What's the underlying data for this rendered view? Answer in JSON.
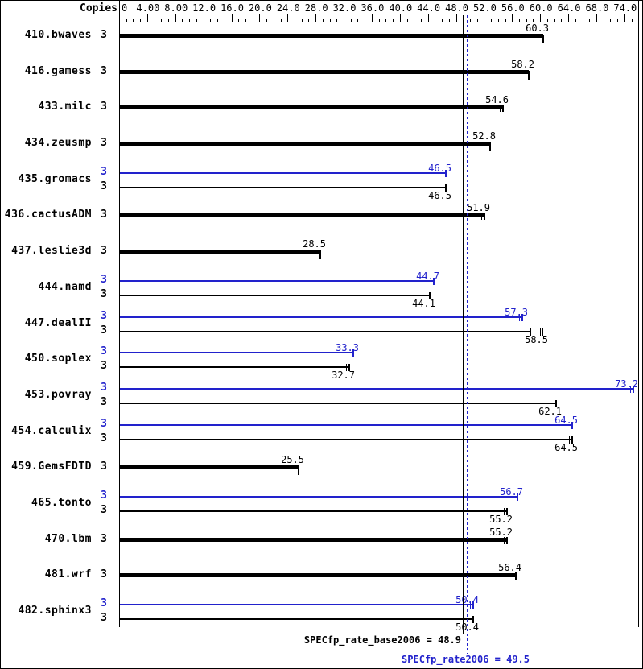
{
  "header": {
    "copies_label": "Copies",
    "copies_column_header_note": "Copies"
  },
  "colors": {
    "peak_blue": "#2222cc",
    "base_black": "#000000",
    "background": "#ffffff"
  },
  "summary": {
    "base_text": "SPECfp_rate_base2006 = 48.9",
    "peak_text": "SPECfp_rate2006 = 49.5"
  },
  "chart_data": {
    "type": "bar",
    "orientation": "horizontal",
    "xlim": [
      0,
      74
    ],
    "grid": false,
    "x_tick_values": [
      0,
      4,
      8,
      12,
      16,
      20,
      24,
      28,
      32,
      36,
      40,
      44,
      48,
      52,
      56,
      60,
      64,
      68,
      74
    ],
    "x_tick_labels": [
      "0",
      "4.00",
      "8.00",
      "12.0",
      "16.0",
      "20.0",
      "24.0",
      "28.0",
      "32.0",
      "36.0",
      "40.0",
      "44.0",
      "48.0",
      "52.0",
      "56.0",
      "60.0",
      "64.0",
      "68.0",
      "74.0"
    ],
    "minor_tick_step": 1,
    "major_tick_step": 4,
    "reference_lines": [
      {
        "name": "SPECfp_rate_base2006",
        "value": 48.9,
        "color": "base",
        "style": "solid"
      },
      {
        "name": "SPECfp_rate2006",
        "value": 49.5,
        "color": "peak",
        "style": "dotted"
      }
    ],
    "benchmarks": [
      {
        "name": "410.bwaves",
        "runs": [
          {
            "type": "base",
            "copies": 3,
            "value": 60.3,
            "label": "60.3",
            "marker": "tick"
          }
        ]
      },
      {
        "name": "416.gamess",
        "runs": [
          {
            "type": "base",
            "copies": 3,
            "value": 58.2,
            "label": "58.2",
            "marker": "tick"
          }
        ]
      },
      {
        "name": "433.milc",
        "runs": [
          {
            "type": "base",
            "copies": 3,
            "value": 54.6,
            "label": "54.6",
            "marker": "double"
          }
        ]
      },
      {
        "name": "434.zeusmp",
        "runs": [
          {
            "type": "base",
            "copies": 3,
            "value": 52.8,
            "label": "52.8",
            "marker": "tick"
          }
        ]
      },
      {
        "name": "435.gromacs",
        "runs": [
          {
            "type": "peak",
            "copies": 3,
            "value": 46.5,
            "label": "46.5",
            "marker": "double"
          },
          {
            "type": "base",
            "copies": 3,
            "value": 46.5,
            "label": "46.5",
            "marker": "tick"
          }
        ]
      },
      {
        "name": "436.cactusADM",
        "runs": [
          {
            "type": "base",
            "copies": 3,
            "value": 51.9,
            "label": "51.9",
            "marker": "double"
          }
        ]
      },
      {
        "name": "437.leslie3d",
        "runs": [
          {
            "type": "base",
            "copies": 3,
            "value": 28.5,
            "label": "28.5",
            "marker": "tick"
          }
        ]
      },
      {
        "name": "444.namd",
        "runs": [
          {
            "type": "peak",
            "copies": 3,
            "value": 44.7,
            "label": "44.7",
            "marker": "tick"
          },
          {
            "type": "base",
            "copies": 3,
            "value": 44.1,
            "label": "44.1",
            "marker": "tick"
          }
        ]
      },
      {
        "name": "447.dealII",
        "runs": [
          {
            "type": "peak",
            "copies": 3,
            "value": 57.3,
            "label": "57.3",
            "marker": "double"
          },
          {
            "type": "base",
            "copies": 3,
            "value": 58.5,
            "label": "58.5",
            "marker": "tick",
            "range_max": 60.2
          }
        ]
      },
      {
        "name": "450.soplex",
        "runs": [
          {
            "type": "peak",
            "copies": 3,
            "value": 33.3,
            "label": "33.3",
            "marker": "tick"
          },
          {
            "type": "base",
            "copies": 3,
            "value": 32.7,
            "label": "32.7",
            "marker": "double"
          }
        ]
      },
      {
        "name": "453.povray",
        "runs": [
          {
            "type": "peak",
            "copies": 3,
            "value": 73.2,
            "label": "73.2",
            "marker": "double"
          },
          {
            "type": "base",
            "copies": 3,
            "value": 62.1,
            "label": "62.1",
            "marker": "tick"
          }
        ]
      },
      {
        "name": "454.calculix",
        "runs": [
          {
            "type": "peak",
            "copies": 3,
            "value": 64.5,
            "label": "64.5",
            "marker": "tick"
          },
          {
            "type": "base",
            "copies": 3,
            "value": 64.5,
            "label": "64.5",
            "marker": "double"
          }
        ]
      },
      {
        "name": "459.GemsFDTD",
        "runs": [
          {
            "type": "base",
            "copies": 3,
            "value": 25.5,
            "label": "25.5",
            "marker": "tick"
          }
        ]
      },
      {
        "name": "465.tonto",
        "runs": [
          {
            "type": "peak",
            "copies": 3,
            "value": 56.7,
            "label": "56.7",
            "marker": "tick"
          },
          {
            "type": "base",
            "copies": 3,
            "value": 55.2,
            "label": "55.2",
            "marker": "double"
          }
        ]
      },
      {
        "name": "470.lbm",
        "runs": [
          {
            "type": "base",
            "copies": 3,
            "value": 55.2,
            "label": "55.2",
            "marker": "double"
          }
        ]
      },
      {
        "name": "481.wrf",
        "runs": [
          {
            "type": "base",
            "copies": 3,
            "value": 56.4,
            "label": "56.4",
            "marker": "double"
          }
        ]
      },
      {
        "name": "482.sphinx3",
        "runs": [
          {
            "type": "peak",
            "copies": 3,
            "value": 50.4,
            "label": "50.4",
            "marker": "double"
          },
          {
            "type": "base",
            "copies": 3,
            "value": 50.4,
            "label": "50.4",
            "marker": "tick"
          }
        ]
      }
    ]
  }
}
